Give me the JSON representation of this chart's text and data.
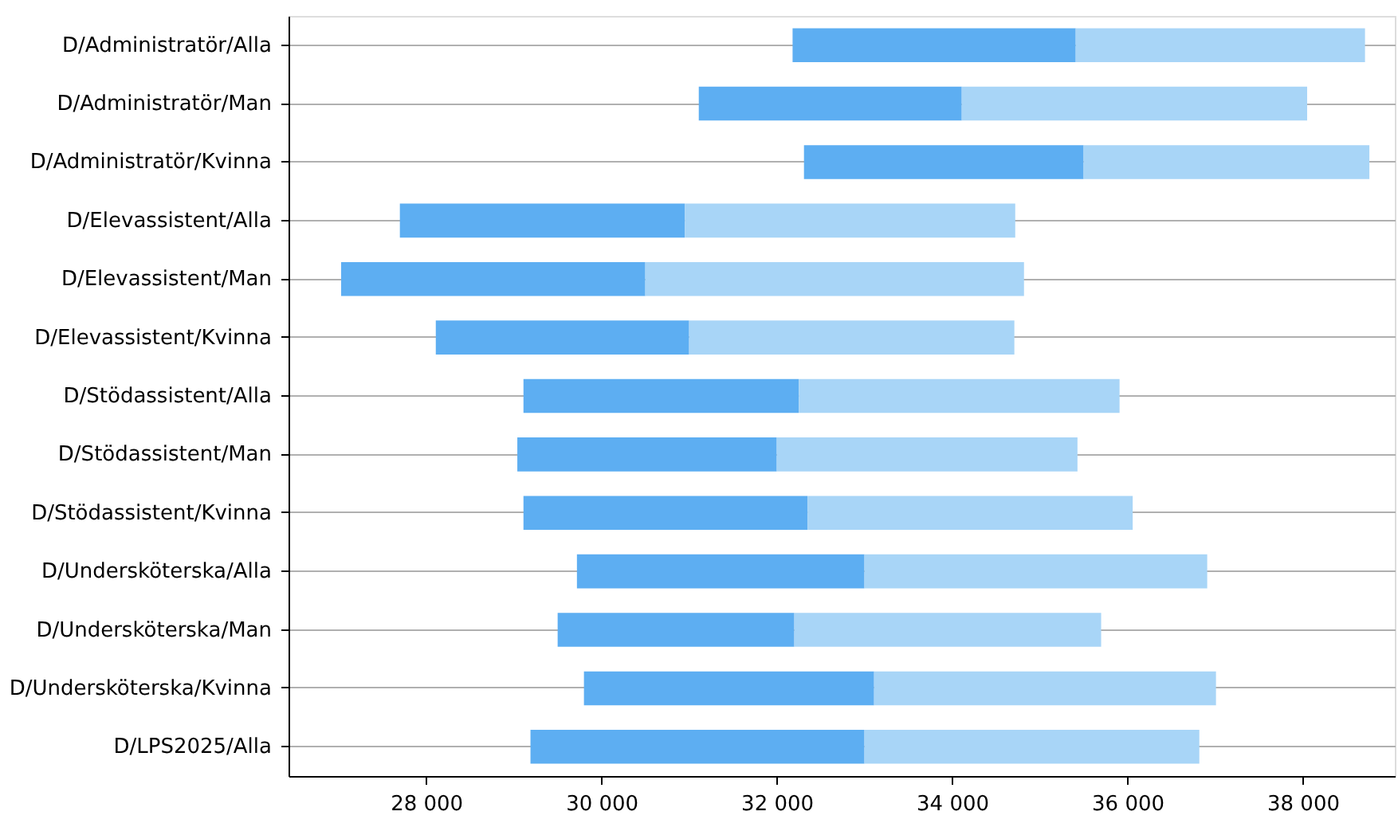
{
  "chart_data": {
    "type": "bar",
    "orientation": "horizontal",
    "categories": [
      "D/Administratör/Alla",
      "D/Administratör/Man",
      "D/Administratör/Kvinna",
      "D/Elevassistent/Alla",
      "D/Elevassistent/Man",
      "D/Elevassistent/Kvinna",
      "D/Stödassistent/Alla",
      "D/Stödassistent/Man",
      "D/Stödassistent/Kvinna",
      "D/Undersköterska/Alla",
      "D/Undersköterska/Man",
      "D/Undersköterska/Kvinna",
      "D/LPS2025/Alla"
    ],
    "series": [
      {
        "color": "#5daef2",
        "base": [
          32180,
          31110,
          32310,
          27700,
          27030,
          28110,
          29110,
          29040,
          29110,
          29720,
          29500,
          29800,
          29190
        ],
        "values": [
          3230,
          3000,
          3190,
          3250,
          3470,
          2890,
          3140,
          2960,
          3240,
          3280,
          2700,
          3310,
          3810
        ]
      },
      {
        "color": "#a8d5f7",
        "base": [
          35410,
          34110,
          35500,
          30950,
          30500,
          31000,
          32250,
          32000,
          32350,
          33000,
          32200,
          33110,
          33000
        ],
        "values": [
          3300,
          3940,
          3260,
          3770,
          4320,
          3710,
          3660,
          3430,
          3710,
          3910,
          3500,
          3900,
          3820
        ]
      }
    ],
    "xlim": [
      26430,
      39050
    ],
    "xticks": [
      {
        "value": 28000,
        "label": "28 000"
      },
      {
        "value": 30000,
        "label": "30 000"
      },
      {
        "value": 32000,
        "label": "32 000"
      },
      {
        "value": 34000,
        "label": "34 000"
      },
      {
        "value": 36000,
        "label": "36 000"
      },
      {
        "value": 38000,
        "label": "38 000"
      }
    ],
    "grid": "y",
    "legend": false
  }
}
